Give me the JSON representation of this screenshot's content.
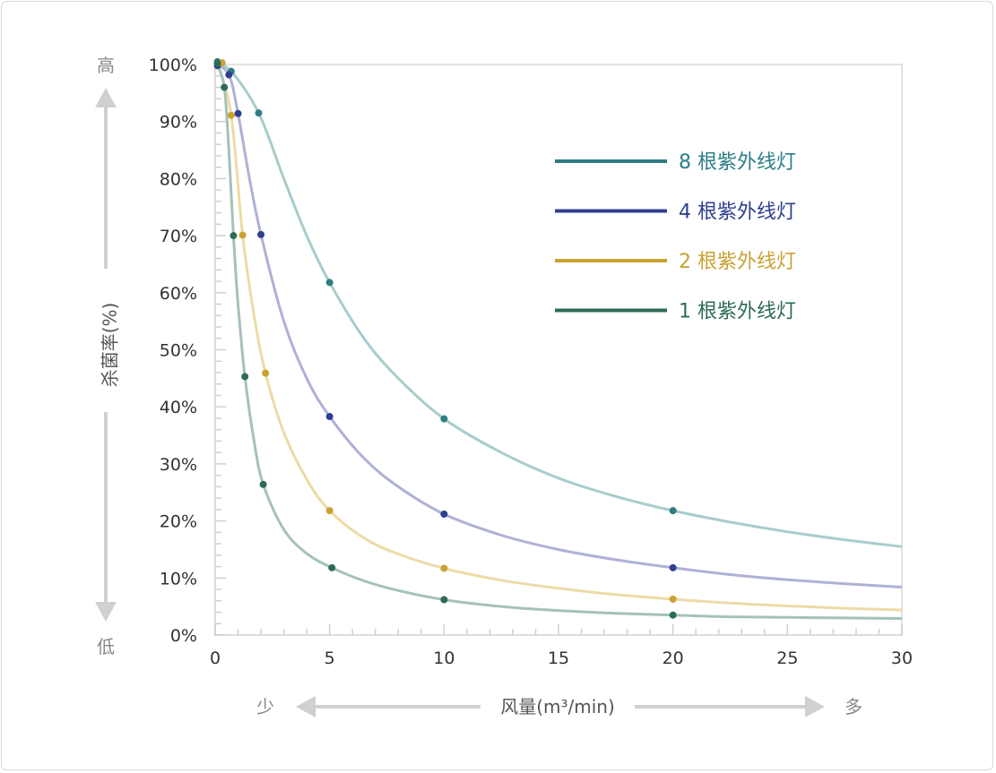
{
  "chart_data": {
    "type": "line",
    "xlabel": "风量(m³/min)",
    "ylabel": "杀菌率(%)",
    "xlim": [
      0,
      30
    ],
    "ylim": [
      0,
      100
    ],
    "x_ticks": [
      "0",
      "5",
      "10",
      "15",
      "20",
      "25",
      "30"
    ],
    "y_ticks": [
      "0%",
      "10%",
      "20%",
      "30%",
      "40%",
      "50%",
      "60%",
      "70%",
      "80%",
      "90%",
      "100%"
    ],
    "y_high_label": "高",
    "y_low_label": "低",
    "x_low_label": "少",
    "x_high_label": "多",
    "legend_position": "top-right",
    "series": [
      {
        "name": "8 根紫外线灯",
        "color": "#2e7d86",
        "curve_color": "#a8cccc",
        "points": [
          [
            0.1,
            100.5
          ],
          [
            0.7,
            98.8
          ],
          [
            1.9,
            91.5
          ],
          [
            5,
            61.8
          ],
          [
            10,
            37.9
          ],
          [
            20,
            21.8
          ]
        ],
        "curve": [
          [
            0,
            100
          ],
          [
            0.7,
            98.8
          ],
          [
            1.9,
            91.5
          ],
          [
            3,
            80
          ],
          [
            4,
            70
          ],
          [
            5,
            61.8
          ],
          [
            6.5,
            52
          ],
          [
            8,
            45
          ],
          [
            10,
            37.9
          ],
          [
            12.5,
            32
          ],
          [
            15,
            27.5
          ],
          [
            17.5,
            24.3
          ],
          [
            20,
            21.8
          ],
          [
            22.5,
            19.8
          ],
          [
            25,
            18.1
          ],
          [
            27.5,
            16.7
          ],
          [
            30,
            15.5
          ]
        ]
      },
      {
        "name": "4 根紫外线灯",
        "color": "#2f3f8f",
        "curve_color": "#aeb1d6",
        "points": [
          [
            0.1,
            99.8
          ],
          [
            0.6,
            98.2
          ],
          [
            1,
            91.4
          ],
          [
            2,
            70.2
          ],
          [
            5,
            38.3
          ],
          [
            10,
            21.2
          ],
          [
            20,
            11.8
          ]
        ],
        "curve": [
          [
            0,
            100
          ],
          [
            0.6,
            98.2
          ],
          [
            1,
            91.4
          ],
          [
            1.5,
            80
          ],
          [
            2,
            70.2
          ],
          [
            3,
            55
          ],
          [
            4,
            45
          ],
          [
            5,
            38.3
          ],
          [
            6.5,
            31
          ],
          [
            8,
            26
          ],
          [
            10,
            21.2
          ],
          [
            12.5,
            17.5
          ],
          [
            15,
            15
          ],
          [
            17.5,
            13.2
          ],
          [
            20,
            11.8
          ],
          [
            22.5,
            10.6
          ],
          [
            25,
            9.7
          ],
          [
            27.5,
            9
          ],
          [
            30,
            8.4
          ]
        ]
      },
      {
        "name": "2 根紫外线灯",
        "color": "#c9a234",
        "curve_color": "#ecdba6",
        "points": [
          [
            0.3,
            100.3
          ],
          [
            0.7,
            91.1
          ],
          [
            1.2,
            70.1
          ],
          [
            2.2,
            45.9
          ],
          [
            5,
            21.8
          ],
          [
            10,
            11.7
          ],
          [
            20,
            6.3
          ]
        ],
        "curve": [
          [
            0.1,
            100
          ],
          [
            0.7,
            91.1
          ],
          [
            1.2,
            70.1
          ],
          [
            1.7,
            56
          ],
          [
            2.2,
            45.9
          ],
          [
            3,
            35.5
          ],
          [
            4,
            27.3
          ],
          [
            5,
            21.8
          ],
          [
            6.5,
            17
          ],
          [
            8,
            14.2
          ],
          [
            10,
            11.7
          ],
          [
            12.5,
            9.6
          ],
          [
            15,
            8.2
          ],
          [
            17.5,
            7.1
          ],
          [
            20,
            6.3
          ],
          [
            22.5,
            5.6
          ],
          [
            25,
            5.1
          ],
          [
            27.5,
            4.7
          ],
          [
            30,
            4.4
          ]
        ]
      },
      {
        "name": "1 根紫外线灯",
        "color": "#2e6b56",
        "curve_color": "#a5c2b6",
        "points": [
          [
            0.1,
            100.2
          ],
          [
            0.4,
            96
          ],
          [
            0.8,
            70
          ],
          [
            1.3,
            45.3
          ],
          [
            2.1,
            26.4
          ],
          [
            5.1,
            11.8
          ],
          [
            10,
            6.2
          ],
          [
            20,
            3.5
          ]
        ],
        "curve": [
          [
            0.1,
            100
          ],
          [
            0.4,
            96
          ],
          [
            0.6,
            85
          ],
          [
            0.8,
            70
          ],
          [
            1,
            58
          ],
          [
            1.3,
            45.3
          ],
          [
            1.7,
            34
          ],
          [
            2.1,
            26.4
          ],
          [
            3,
            18.5
          ],
          [
            4,
            14.3
          ],
          [
            5.1,
            11.8
          ],
          [
            6.5,
            9.5
          ],
          [
            8,
            7.8
          ],
          [
            10,
            6.2
          ],
          [
            12.5,
            5
          ],
          [
            15,
            4.3
          ],
          [
            17.5,
            3.8
          ],
          [
            20,
            3.5
          ],
          [
            22.5,
            3.2
          ],
          [
            25,
            3.1
          ],
          [
            27.5,
            3
          ],
          [
            30,
            2.9
          ]
        ]
      }
    ]
  }
}
